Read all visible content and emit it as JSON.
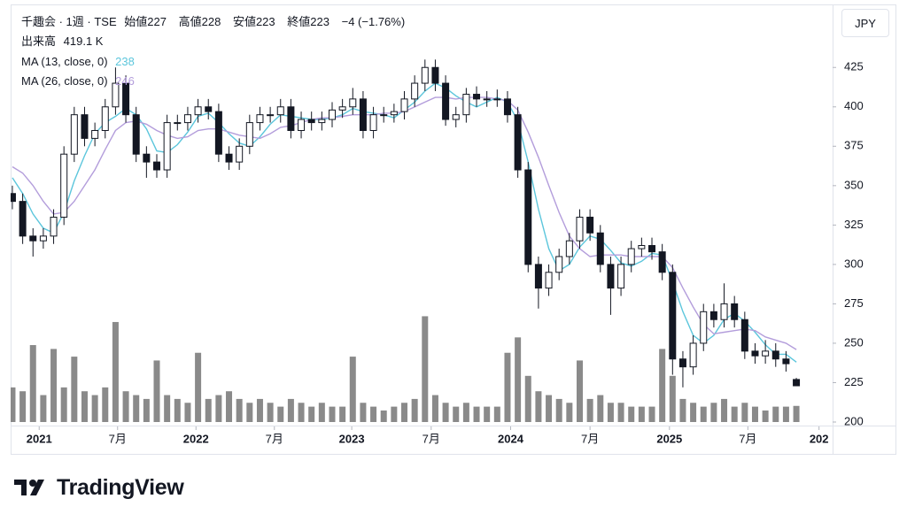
{
  "chart_data": {
    "type": "candlestick",
    "title": "千趣会 · 1週 · TSE",
    "ohlc_labels": [
      "始値",
      "高値",
      "安値",
      "終値"
    ],
    "change_label": "−4 (−1.76%)",
    "currency": "JPY",
    "brand": "TradingView",
    "candles": {
      "open": [
        345,
        340,
        318,
        315,
        318,
        330,
        370,
        395,
        380,
        385,
        400,
        415,
        395,
        370,
        365,
        360,
        390,
        390,
        395,
        400,
        397,
        370,
        365,
        375,
        390,
        395,
        395,
        400,
        385,
        392,
        390,
        392,
        398,
        400,
        405,
        385,
        395,
        395,
        397,
        405,
        415,
        425,
        415,
        392,
        395,
        408,
        405,
        405,
        405,
        395,
        360,
        300,
        285,
        295,
        305,
        315,
        330,
        320,
        300,
        285,
        300,
        310,
        312,
        308,
        295,
        240,
        235,
        250,
        270,
        265,
        275,
        265,
        245,
        242,
        245,
        240,
        227
      ],
      "high": [
        350,
        345,
        323,
        323,
        335,
        375,
        400,
        400,
        390,
        405,
        425,
        420,
        400,
        375,
        370,
        395,
        395,
        400,
        405,
        405,
        402,
        375,
        380,
        395,
        400,
        400,
        405,
        405,
        397,
        397,
        397,
        403,
        405,
        412,
        410,
        400,
        400,
        402,
        410,
        420,
        430,
        430,
        420,
        400,
        412,
        413,
        410,
        411,
        410,
        400,
        365,
        305,
        300,
        310,
        320,
        335,
        335,
        325,
        305,
        305,
        315,
        317,
        317,
        313,
        300,
        245,
        255,
        275,
        275,
        288,
        280,
        270,
        250,
        252,
        250,
        245,
        228
      ],
      "low": [
        335,
        313,
        305,
        310,
        313,
        325,
        365,
        375,
        375,
        380,
        395,
        390,
        365,
        355,
        355,
        355,
        385,
        385,
        390,
        392,
        365,
        360,
        360,
        370,
        385,
        390,
        390,
        380,
        380,
        385,
        385,
        387,
        393,
        395,
        380,
        380,
        390,
        390,
        392,
        400,
        410,
        410,
        388,
        387,
        390,
        400,
        400,
        400,
        390,
        355,
        295,
        272,
        280,
        290,
        300,
        310,
        315,
        295,
        268,
        280,
        295,
        305,
        303,
        290,
        230,
        222,
        230,
        245,
        260,
        260,
        260,
        240,
        237,
        237,
        235,
        232,
        223
      ],
      "close": [
        340,
        318,
        315,
        318,
        330,
        370,
        395,
        380,
        385,
        400,
        415,
        395,
        370,
        365,
        360,
        390,
        390,
        395,
        400,
        397,
        370,
        365,
        375,
        390,
        395,
        395,
        400,
        385,
        392,
        390,
        392,
        398,
        400,
        405,
        385,
        395,
        395,
        397,
        405,
        415,
        425,
        415,
        392,
        395,
        408,
        405,
        405,
        405,
        395,
        360,
        300,
        285,
        295,
        305,
        315,
        330,
        320,
        300,
        285,
        300,
        310,
        312,
        308,
        295,
        240,
        235,
        250,
        270,
        265,
        275,
        265,
        245,
        242,
        245,
        240,
        237,
        223
      ]
    },
    "volume": {
      "name": "出来高",
      "color": "#8a8a8a",
      "last_label": "419.1 K",
      "values": [
        900,
        800,
        2000,
        700,
        1900,
        900,
        1700,
        800,
        700,
        900,
        2600,
        800,
        700,
        600,
        1600,
        700,
        600,
        500,
        1800,
        600,
        700,
        800,
        600,
        500,
        600,
        500,
        400,
        600,
        500,
        400,
        500,
        400,
        400,
        1700,
        500,
        400,
        300,
        400,
        500,
        600,
        2750,
        700,
        500,
        400,
        500,
        400,
        400,
        400,
        1800,
        2200,
        1200,
        800,
        700,
        600,
        500,
        1600,
        600,
        700,
        500,
        500,
        400,
        400,
        400,
        1900,
        1200,
        600,
        500,
        400,
        500,
        600,
        400,
        500,
        400,
        300,
        400,
        400,
        419.1
      ]
    },
    "series": [
      {
        "name": "MA (13, close, 0)",
        "color": "#5cc6dc",
        "values": [
          355,
          345,
          332,
          323,
          320,
          333,
          353,
          369,
          383,
          390,
          394,
          399,
          395,
          386,
          372,
          371,
          376,
          384,
          394,
          396,
          390,
          383,
          377,
          375,
          381,
          389,
          395,
          394,
          393,
          392,
          392,
          393,
          395,
          399,
          397,
          396,
          395,
          393,
          398,
          403,
          410,
          415,
          412,
          407,
          403,
          400,
          403,
          406,
          403,
          391,
          365,
          335,
          310,
          296,
          300,
          311,
          318,
          316,
          309,
          301,
          299,
          302,
          307,
          306,
          289,
          270,
          255,
          250,
          255,
          265,
          269,
          264,
          257,
          249,
          243,
          243,
          238
        ]
      },
      {
        "name": "MA (26, close, 0)",
        "color": "#b39ddb",
        "values": [
          362,
          358,
          350,
          340,
          332,
          333,
          340,
          350,
          360,
          373,
          385,
          390,
          391,
          389,
          385,
          382,
          380,
          381,
          385,
          386,
          386,
          384,
          382,
          381,
          380,
          383,
          387,
          388,
          390,
          392,
          393,
          393,
          394,
          395,
          395,
          395,
          396,
          396,
          397,
          400,
          403,
          406,
          406,
          405,
          406,
          406,
          406,
          405,
          404,
          398,
          384,
          368,
          350,
          333,
          318,
          310,
          305,
          306,
          306,
          306,
          305,
          305,
          305,
          305,
          298,
          285,
          273,
          262,
          256,
          257,
          258,
          259,
          258,
          254,
          252,
          250,
          246
        ]
      }
    ],
    "ylim": [
      200,
      465
    ],
    "yticks": [
      200,
      225,
      250,
      275,
      300,
      325,
      350,
      375,
      400,
      425
    ],
    "xlim": [
      -0.34,
      79
    ],
    "xticks": [
      {
        "value": 2.6,
        "label": "2021"
      },
      {
        "value": 10.2,
        "label": "7月"
      },
      {
        "value": 17.8,
        "label": "2022"
      },
      {
        "value": 25.4,
        "label": "7月"
      },
      {
        "value": 32.9,
        "label": "2023"
      },
      {
        "value": 40.6,
        "label": "7月"
      },
      {
        "value": 48.3,
        "label": "2024"
      },
      {
        "value": 56.0,
        "label": "7月"
      },
      {
        "value": 63.7,
        "label": "2025"
      },
      {
        "value": 71.3,
        "label": "7月"
      },
      {
        "value": 78.2,
        "label": "202"
      }
    ]
  }
}
